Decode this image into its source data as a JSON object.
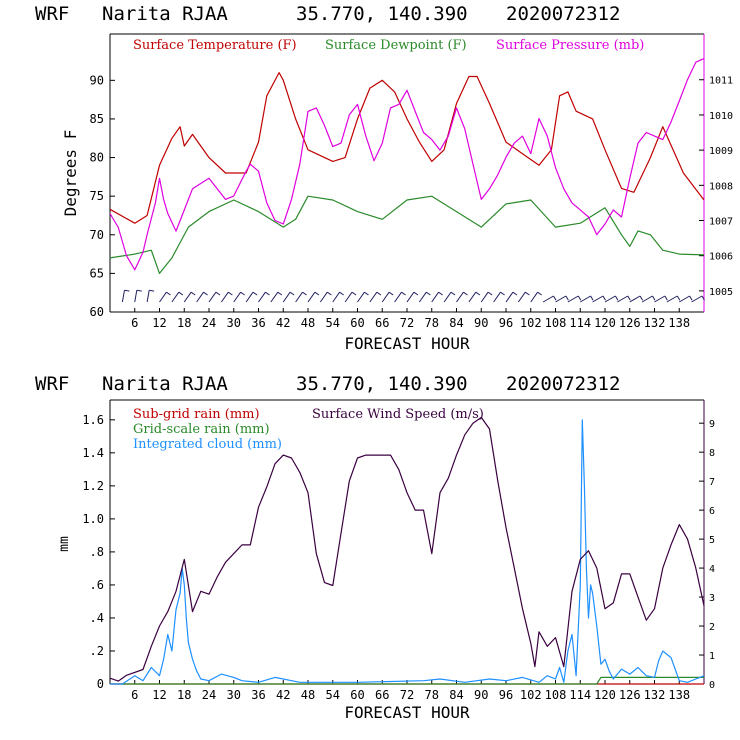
{
  "chart_data": [
    {
      "type": "line",
      "header": {
        "model": "WRF",
        "station": "Narita RJAA",
        "coords": "35.770, 140.390",
        "run": "2020072312"
      },
      "xlabel": "FORECAST HOUR",
      "ylabel": "Degrees F",
      "xlim": [
        0,
        144
      ],
      "ylim": [
        60,
        96
      ],
      "x_ticks": [
        6,
        12,
        18,
        24,
        30,
        36,
        42,
        48,
        54,
        60,
        66,
        72,
        78,
        84,
        90,
        96,
        102,
        108,
        114,
        120,
        126,
        132,
        138
      ],
      "y_ticks": [
        60,
        65,
        70,
        75,
        80,
        85,
        90
      ],
      "y2_ticks": [
        1005,
        1006,
        1007,
        1008,
        1009,
        1010,
        1011
      ],
      "y2lim": [
        1004.4,
        1012.3
      ],
      "series": [
        {
          "name": "Surface Temperature (F)",
          "color": "#c00000",
          "x": [
            0,
            6,
            9,
            12,
            15,
            17,
            18,
            20,
            24,
            28,
            33,
            36,
            38,
            41,
            42,
            45,
            48,
            50,
            54,
            57,
            60,
            63,
            66,
            69,
            72,
            75,
            78,
            81,
            84,
            87,
            89,
            92,
            96,
            100,
            104,
            107,
            109,
            111,
            113,
            117,
            120,
            124,
            127,
            131,
            134,
            139,
            144
          ],
          "values": [
            73.3,
            71.5,
            72.5,
            79,
            82.5,
            84,
            81.5,
            83,
            80,
            78,
            78,
            82,
            88,
            91,
            90,
            85,
            81,
            80.5,
            79.5,
            80,
            85,
            89,
            90,
            88.5,
            85,
            82,
            79.5,
            81,
            87,
            90.5,
            90.5,
            87,
            82,
            80.5,
            79,
            81,
            88,
            88.5,
            86,
            85,
            81,
            76,
            75.5,
            80,
            84,
            78,
            74.5
          ]
        },
        {
          "name": "Surface Dewpoint (F)",
          "color": "#2a8a2a",
          "x": [
            0,
            6,
            10,
            12,
            15,
            19,
            24,
            30,
            36,
            42,
            45,
            48,
            54,
            60,
            66,
            72,
            78,
            84,
            90,
            96,
            102,
            108,
            114,
            120,
            124,
            126,
            128,
            131,
            134,
            138,
            144
          ],
          "values": [
            67,
            67.5,
            68,
            65,
            67,
            71,
            73,
            74.5,
            73,
            71,
            72,
            75,
            74.5,
            73,
            72,
            74.5,
            75,
            73,
            71,
            74,
            74.5,
            71,
            71.5,
            73.5,
            70,
            68.5,
            70.5,
            70,
            68,
            67.5,
            67.4
          ]
        },
        {
          "name": "Surface Pressure (mb)",
          "color": "#e000e0",
          "axis": "right",
          "x": [
            0,
            2,
            4,
            6,
            8,
            9,
            11,
            12,
            13,
            14,
            16,
            18,
            20,
            24,
            28,
            30,
            33,
            34,
            36,
            38,
            40,
            42,
            44,
            46,
            48,
            50,
            52,
            54,
            56,
            58,
            60,
            62,
            64,
            66,
            68,
            70,
            72,
            74,
            76,
            78,
            80,
            82,
            84,
            86,
            88,
            90,
            92,
            94,
            96,
            98,
            100,
            102,
            104,
            106,
            108,
            110,
            112,
            114,
            116,
            118,
            120,
            122,
            124,
            126,
            128,
            130,
            132,
            134,
            136,
            138,
            140,
            142,
            144
          ],
          "values": [
            1007.2,
            1006.8,
            1006,
            1005.6,
            1006.1,
            1006.6,
            1007.5,
            1008.2,
            1007.6,
            1007.2,
            1006.7,
            1007.3,
            1007.9,
            1008.2,
            1007.6,
            1007.7,
            1008.4,
            1008.6,
            1008.4,
            1007.5,
            1007,
            1006.9,
            1007.6,
            1008.6,
            1010.1,
            1010.2,
            1009.7,
            1009.1,
            1009.2,
            1010,
            1010.3,
            1009.4,
            1008.7,
            1009.2,
            1010.2,
            1010.3,
            1010.7,
            1010.1,
            1009.5,
            1009.3,
            1009,
            1009.4,
            1010.2,
            1009.6,
            1008.6,
            1007.6,
            1007.9,
            1008.3,
            1008.8,
            1009.2,
            1009.4,
            1008.9,
            1009.9,
            1009.4,
            1008.5,
            1007.9,
            1007.5,
            1007.3,
            1007.1,
            1006.6,
            1006.9,
            1007.3,
            1007.1,
            1008.2,
            1009.2,
            1009.5,
            1009.4,
            1009.3,
            1009.8,
            1010.4,
            1011,
            1011.5,
            1011.6
          ]
        }
      ],
      "wind_barbs": "present along bottom of panel (not transcribed)"
    },
    {
      "type": "line",
      "header": {
        "model": "WRF",
        "station": "Narita RJAA",
        "coords": "35.770, 140.390",
        "run": "2020072312"
      },
      "xlabel": "FORECAST HOUR",
      "ylabel": "mm",
      "xlim": [
        0,
        144
      ],
      "ylim": [
        0,
        1.72
      ],
      "x_ticks": [
        6,
        12,
        18,
        24,
        30,
        36,
        42,
        48,
        54,
        60,
        66,
        72,
        78,
        84,
        90,
        96,
        102,
        108,
        114,
        120,
        126,
        132,
        138
      ],
      "y_ticks": [
        {
          "v": 0,
          "label": "0"
        },
        {
          "v": 0.2,
          "label": ".2"
        },
        {
          "v": 0.4,
          "label": ".4"
        },
        {
          "v": 0.6,
          "label": ".6"
        },
        {
          "v": 0.8,
          "label": ".8"
        },
        {
          "v": 1.0,
          "label": "1.0"
        },
        {
          "v": 1.2,
          "label": "1.2"
        },
        {
          "v": 1.4,
          "label": "1.4"
        },
        {
          "v": 1.6,
          "label": "1.6"
        }
      ],
      "y2_ticks": [
        0,
        1,
        2,
        3,
        4,
        5,
        6,
        7,
        8,
        9
      ],
      "y2lim": [
        0,
        9.8
      ],
      "series": [
        {
          "name": "Sub-grid rain (mm)",
          "color": "#c00000",
          "x": [
            0,
            144
          ],
          "values": [
            0,
            0
          ]
        },
        {
          "name": "Grid-scale rain (mm)",
          "color": "#2a8a2a",
          "x": [
            0,
            118,
            119,
            144
          ],
          "values": [
            0,
            0,
            0.04,
            0.04
          ]
        },
        {
          "name": "Integrated cloud (mm)",
          "color": "#1e90ff",
          "x": [
            0,
            3,
            6,
            8,
            10,
            12,
            13,
            14,
            15,
            16,
            17,
            17.5,
            18,
            18.5,
            19,
            20,
            21,
            22,
            24,
            27,
            30,
            32,
            36,
            40,
            46,
            60,
            76,
            80,
            86,
            92,
            96,
            100,
            104,
            106,
            108,
            109,
            110,
            111,
            112,
            113,
            114,
            114.5,
            115,
            115.5,
            116,
            116.5,
            117,
            118,
            119,
            120,
            121,
            122,
            124,
            126,
            128,
            130,
            132,
            133,
            134,
            136,
            138,
            140,
            142,
            143,
            144
          ],
          "values": [
            0,
            0,
            0.05,
            0.02,
            0.1,
            0.05,
            0.15,
            0.3,
            0.2,
            0.45,
            0.55,
            0.7,
            0.6,
            0.4,
            0.25,
            0.15,
            0.08,
            0.03,
            0.02,
            0.06,
            0.04,
            0.02,
            0.01,
            0.04,
            0.01,
            0.01,
            0.02,
            0.03,
            0.01,
            0.03,
            0.02,
            0.04,
            0.01,
            0.05,
            0.03,
            0.1,
            0.01,
            0.2,
            0.3,
            0.05,
            0.6,
            1.6,
            1.2,
            0.7,
            0.4,
            0.6,
            0.55,
            0.35,
            0.12,
            0.15,
            0.08,
            0.03,
            0.09,
            0.06,
            0.1,
            0.05,
            0.04,
            0.14,
            0.2,
            0.16,
            0.02,
            0.01,
            0.03,
            0.04,
            0.05
          ]
        },
        {
          "name": "Surface Wind Speed (m/s)",
          "color": "#3a0040",
          "axis": "right",
          "x": [
            0,
            2,
            4,
            8,
            10,
            12,
            14,
            16,
            18,
            20,
            22,
            24,
            26,
            28,
            30,
            32,
            34,
            36,
            38,
            40,
            42,
            44,
            46,
            48,
            50,
            52,
            54,
            56,
            58,
            60,
            62,
            64,
            66,
            68,
            70,
            72,
            74,
            76,
            78,
            80,
            82,
            84,
            86,
            88,
            90,
            92,
            94,
            96,
            98,
            100,
            102,
            103,
            104,
            106,
            108,
            110,
            112,
            114,
            116,
            118,
            120,
            122,
            124,
            126,
            128,
            130,
            132,
            134,
            136,
            138,
            140,
            142,
            144
          ],
          "values": [
            0.2,
            0.1,
            0.3,
            0.5,
            1.3,
            2,
            2.5,
            3.2,
            4.3,
            2.5,
            3.2,
            3.1,
            3.7,
            4.2,
            4.5,
            4.8,
            4.8,
            6.1,
            6.8,
            7.6,
            7.9,
            7.8,
            7.3,
            6.6,
            4.5,
            3.5,
            3.4,
            5.2,
            7,
            7.8,
            7.9,
            7.9,
            7.9,
            7.9,
            7.4,
            6.6,
            6,
            6,
            4.5,
            6.6,
            7.1,
            7.9,
            8.6,
            9,
            9.2,
            8.8,
            7,
            5.4,
            4,
            2.6,
            1.4,
            0.6,
            1.8,
            1.3,
            1.6,
            0.6,
            3.2,
            4.3,
            4.6,
            4,
            2.6,
            2.8,
            3.8,
            3.8,
            3,
            2.2,
            2.6,
            4,
            4.8,
            5.5,
            5,
            4,
            2.7
          ]
        }
      ]
    }
  ]
}
